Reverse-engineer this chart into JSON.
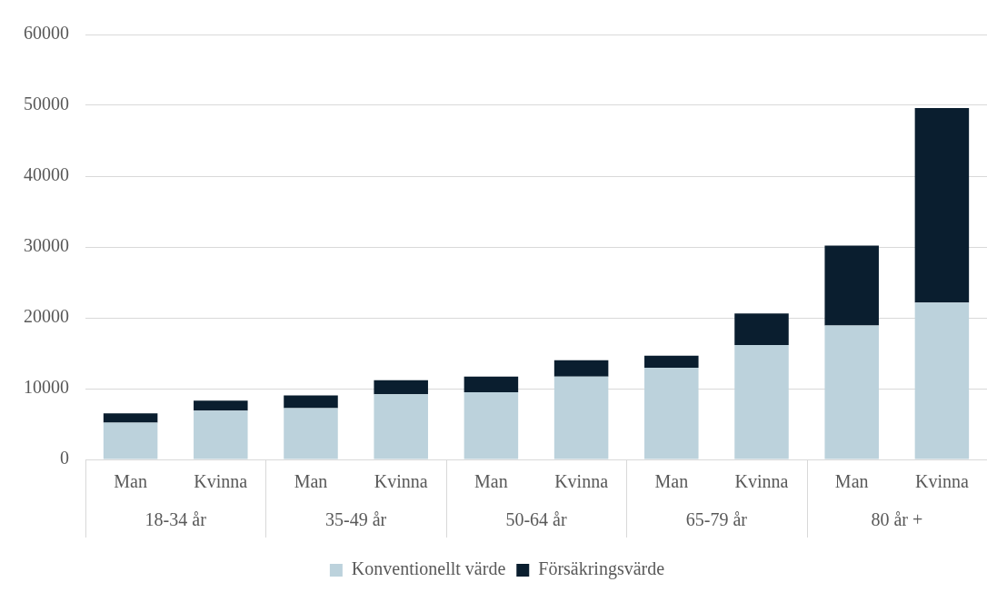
{
  "chart_data": {
    "type": "bar",
    "stacked": true,
    "categories": [
      "Man",
      "Kvinna",
      "Man",
      "Kvinna",
      "Man",
      "Kvinna",
      "Man",
      "Kvinna",
      "Man",
      "Kvinna"
    ],
    "annotations": [
      "18-34 år",
      "35-49 år",
      "50-64 år",
      "65-79 år",
      "80 år +"
    ],
    "series": [
      {
        "name": "Konventionellt värde",
        "color": "#bcd2dc",
        "values": [
          5200,
          6900,
          7250,
          9200,
          9500,
          11700,
          12950,
          16150,
          18900,
          22150
        ]
      },
      {
        "name": "Försäkringsvärde",
        "color": "#0a1e2f",
        "values": [
          1300,
          1400,
          1800,
          2000,
          2200,
          2300,
          1700,
          4450,
          11300,
          27450
        ]
      }
    ],
    "ylim": [
      0,
      60000
    ],
    "yticks": [
      0,
      10000,
      20000,
      30000,
      40000,
      50000,
      60000
    ],
    "grid": "y",
    "legend": "bottom"
  }
}
